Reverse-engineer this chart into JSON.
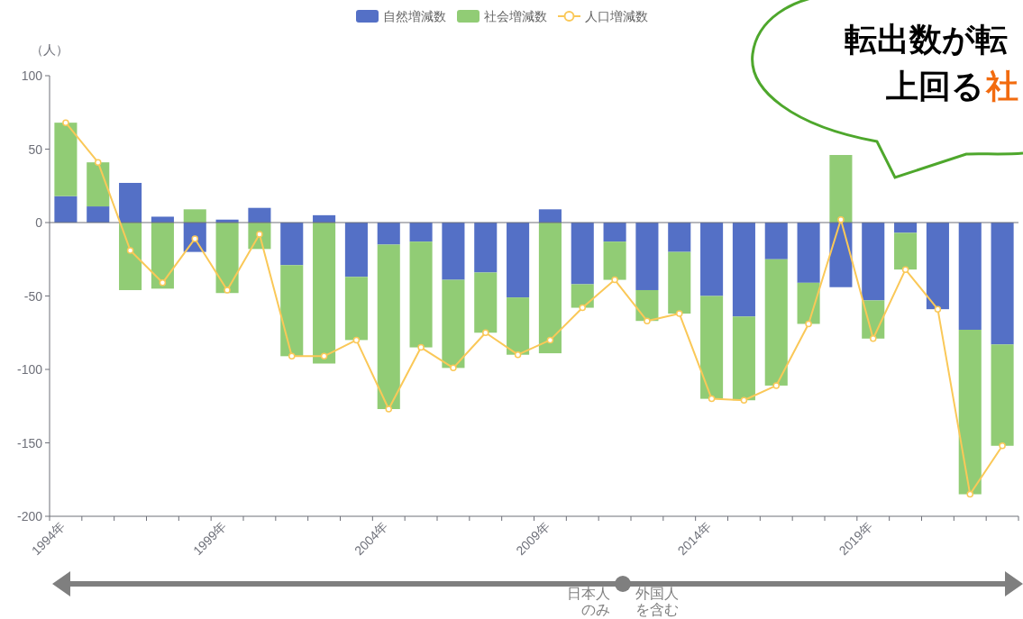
{
  "chart_data": {
    "type": "bar",
    "stacked": true,
    "ylabel": "（人）",
    "categories": [
      "1994年",
      null,
      null,
      null,
      null,
      "1999年",
      null,
      null,
      null,
      null,
      "2004年",
      null,
      null,
      null,
      null,
      "2009年",
      null,
      null,
      null,
      null,
      "2014年",
      null,
      null,
      null,
      null,
      "2019年",
      null,
      null,
      null,
      null
    ],
    "series": [
      {
        "name": "自然増減数",
        "color": "#5470c6",
        "values": [
          18,
          11,
          27,
          4,
          -20,
          2,
          10,
          -29,
          5,
          -37,
          -15,
          -13,
          -39,
          -34,
          -51,
          9,
          -42,
          -13,
          -46,
          -20,
          -50,
          -64,
          -25,
          -41,
          -44,
          -53,
          -7,
          -59,
          -73,
          -83
        ]
      },
      {
        "name": "社会増減数",
        "color": "#91cc75",
        "values": [
          50,
          30,
          -46,
          -45,
          9,
          -48,
          -18,
          -62,
          -96,
          -43,
          -112,
          -72,
          -60,
          -41,
          -39,
          -89,
          -16,
          -26,
          -21,
          -42,
          -70,
          -57,
          -86,
          -28,
          46,
          -26,
          -25,
          0,
          -112,
          -69
        ]
      },
      {
        "name": "人口増減数",
        "type": "line",
        "color": "#fac858",
        "values": [
          68,
          41,
          -19,
          -41,
          -11,
          -46,
          -8,
          -91,
          -91,
          -80,
          -127,
          -85,
          -99,
          -75,
          -90,
          -80,
          -58,
          -39,
          -67,
          -62,
          -120,
          -121,
          -111,
          -69,
          2,
          -79,
          -32,
          -59,
          -185,
          -152
        ]
      }
    ],
    "ylim": [
      -200,
      100
    ],
    "yticks": [
      -200,
      -150,
      -100,
      -50,
      0,
      50,
      100
    ],
    "legend": "top",
    "marker": "circle",
    "ref_lines": [
      {
        "axis": "y",
        "value": 0,
        "color": "#6e7079"
      }
    ],
    "annotations": [
      "転出数が転",
      "上回る",
      "社",
      "日本人",
      "のみ",
      "外国人",
      "を含む"
    ]
  }
}
